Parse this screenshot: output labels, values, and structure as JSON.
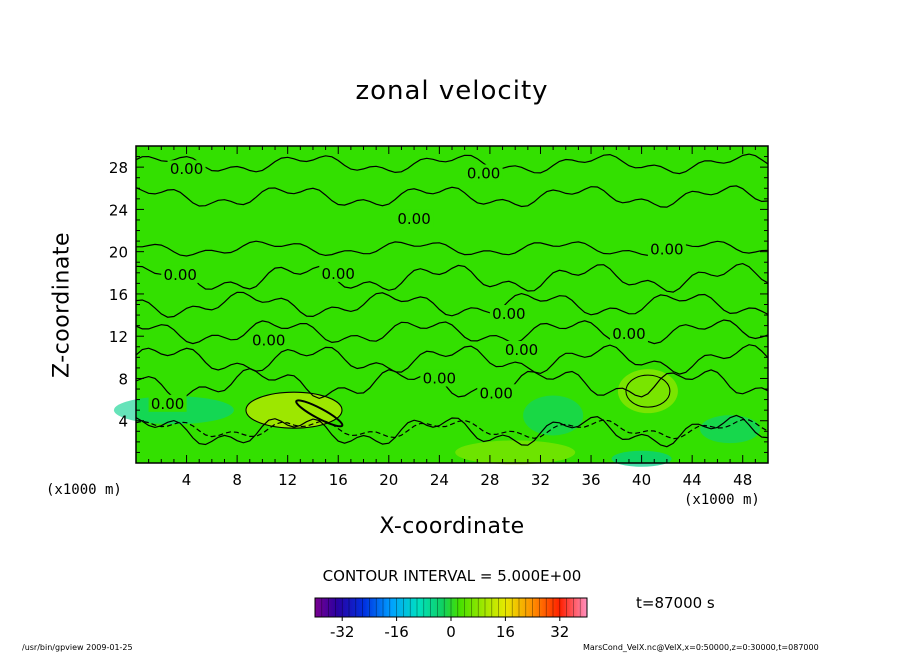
{
  "chart_data": {
    "type": "heatmap",
    "title": "zonal velocity",
    "xlabel": "X-coordinate",
    "ylabel": "Z-coordinate",
    "x_unit_label": "(x1000 m)",
    "xlim": [
      0,
      50
    ],
    "ylim": [
      0,
      30
    ],
    "x_ticks": [
      4,
      8,
      12,
      16,
      20,
      24,
      28,
      32,
      36,
      40,
      44,
      48
    ],
    "y_ticks": [
      4,
      8,
      12,
      16,
      20,
      24,
      28
    ],
    "contour_interval_text": "CONTOUR INTERVAL = 5.000E+00",
    "contour_labels": [
      {
        "text": "0.00",
        "x": 4,
        "z": 27.8
      },
      {
        "text": "0.00",
        "x": 27.5,
        "z": 27.4
      },
      {
        "text": "0.00",
        "x": 22,
        "z": 23.1
      },
      {
        "text": "0.00",
        "x": 42,
        "z": 20.2
      },
      {
        "text": "0.00",
        "x": 3.5,
        "z": 17.8
      },
      {
        "text": "0.00",
        "x": 16,
        "z": 17.9
      },
      {
        "text": "0.00",
        "x": 29.5,
        "z": 14.1
      },
      {
        "text": "0.00",
        "x": 39,
        "z": 12.2
      },
      {
        "text": "0.00",
        "x": 10.5,
        "z": 11.6
      },
      {
        "text": "0.00",
        "x": 30.5,
        "z": 10.7
      },
      {
        "text": "0.00",
        "x": 24,
        "z": 8.0
      },
      {
        "text": "0.00",
        "x": 28.5,
        "z": 6.6
      },
      {
        "text": "0.00",
        "x": 2.5,
        "z": 5.6
      }
    ],
    "colorbar": {
      "min": -40,
      "max": 40,
      "ticks": [
        -32,
        -16,
        0,
        16,
        32
      ],
      "tick_labels": [
        "-32",
        "-16",
        "0",
        "16",
        "32"
      ]
    },
    "time_text": "t=87000 s",
    "colors": {
      "background_field": "#33e000",
      "positive_anomaly": "#a8e800",
      "negative_anomaly": "#00d08a"
    }
  },
  "footer": {
    "left": "/usr/bin/gpview   2009-01-25",
    "right": "MarsCond_VelX.nc@VelX,x=0:50000,z=0:30000,t=087000"
  }
}
